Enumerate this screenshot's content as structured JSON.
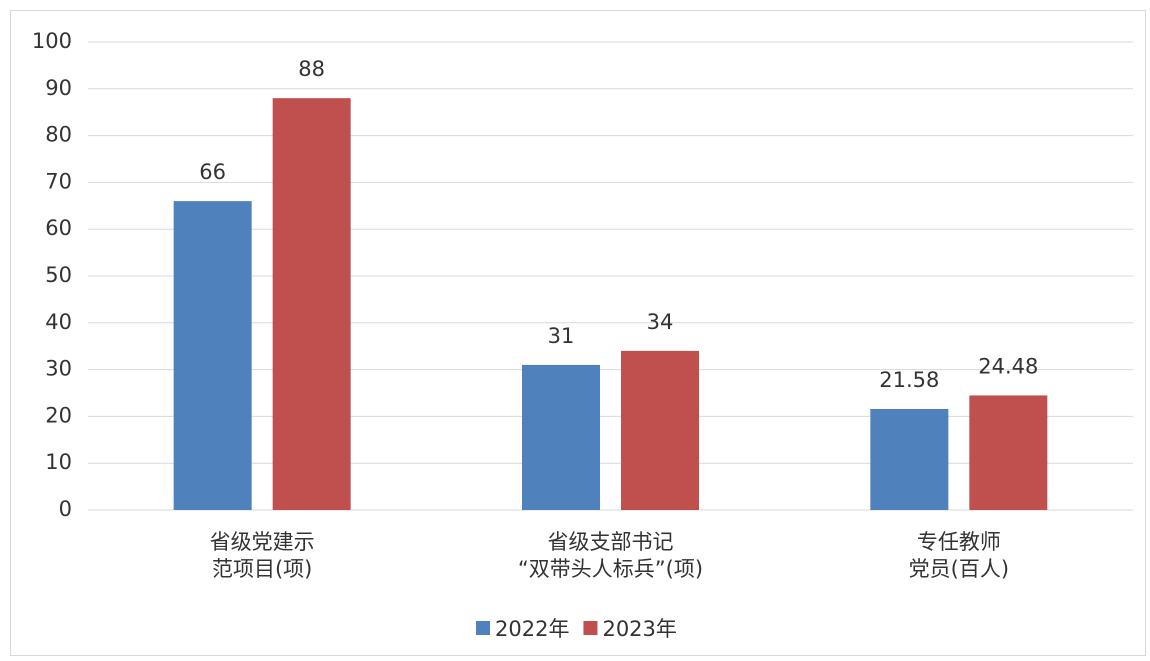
{
  "chart_data": {
    "type": "bar",
    "categories": [
      [
        "省级党建示",
        "范项目(项)"
      ],
      [
        "省级支部书记",
        "“双带头人标兵”(项)"
      ],
      [
        "专任教师",
        "党员(百人)"
      ]
    ],
    "series": [
      {
        "name": "2022年",
        "color": "#4f81bd",
        "values": [
          66,
          31,
          21.58
        ]
      },
      {
        "name": "2023年",
        "color": "#c0504d",
        "values": [
          88,
          34,
          24.48
        ]
      }
    ],
    "ylim": [
      0,
      100
    ],
    "yticks": [
      0,
      10,
      20,
      30,
      40,
      50,
      60,
      70,
      80,
      90,
      100
    ],
    "grid": true,
    "legend": "bottom"
  }
}
